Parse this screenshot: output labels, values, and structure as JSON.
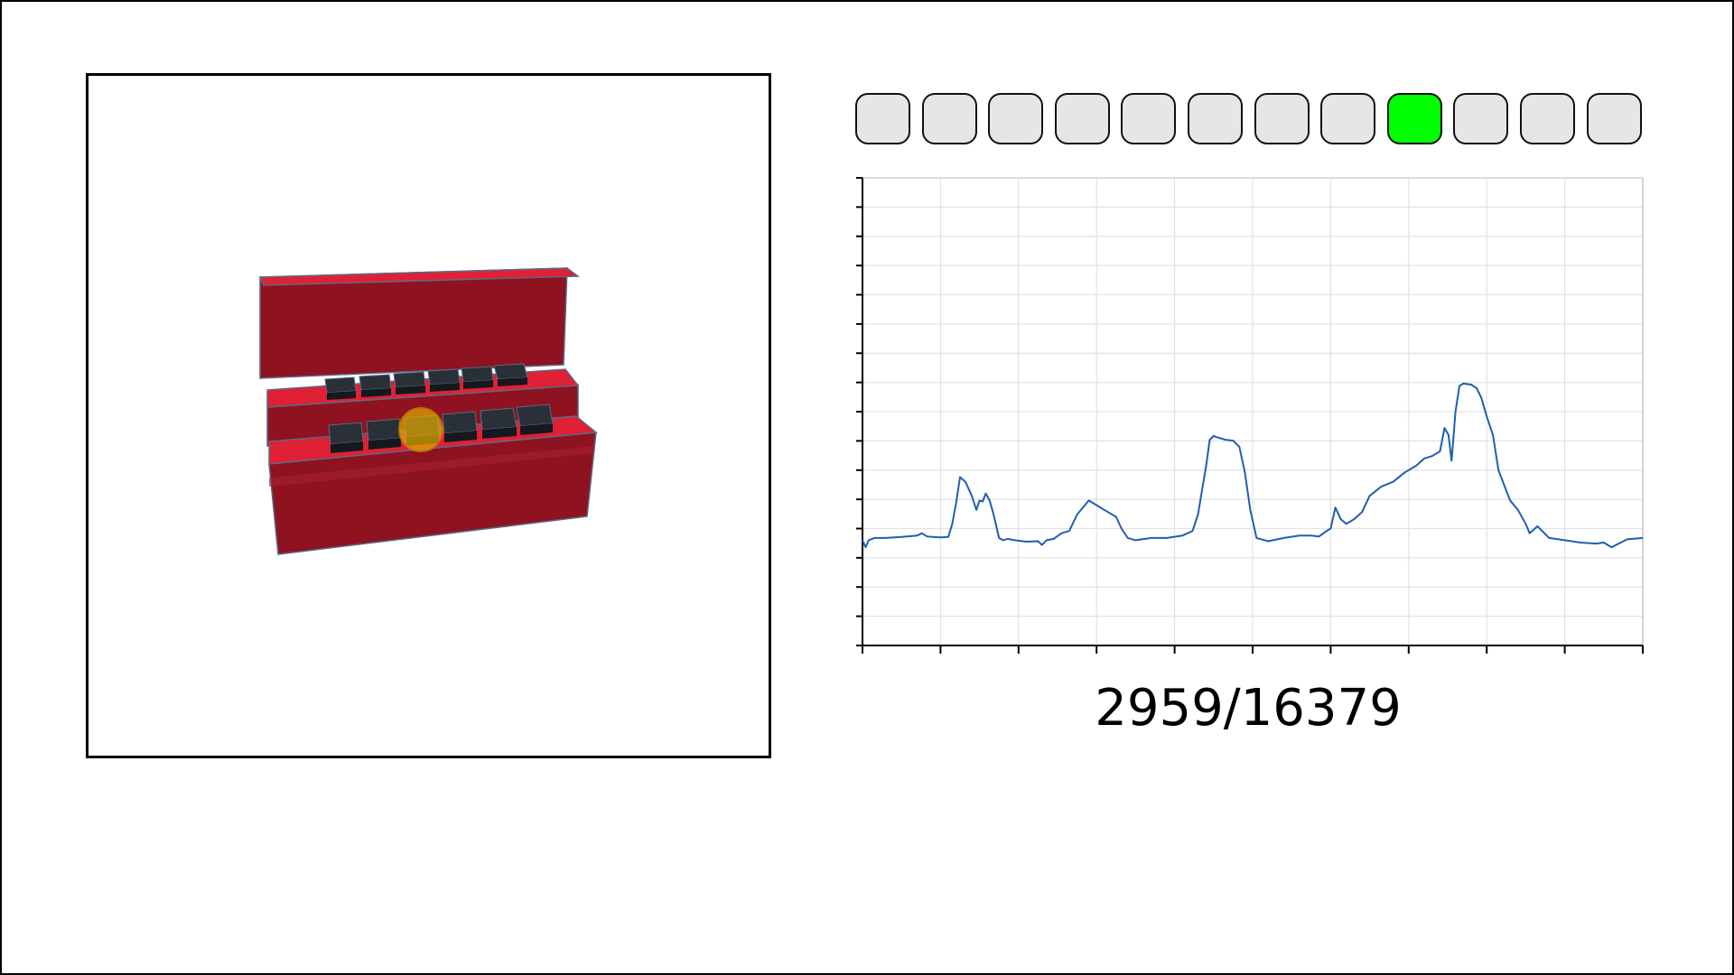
{
  "viewer": {
    "body_color": "#8e121f",
    "top_color": "#e02035",
    "key_color": "#1e2329",
    "cursor_color": "#e0a800",
    "cursor_icon": "cursor-dot-icon"
  },
  "indicators": {
    "count": 12,
    "active_index": 8,
    "active_color": "#00ff00",
    "inactive_color": "#e6e6e6"
  },
  "counter": {
    "text": "2959/16379",
    "current": 2959,
    "total": 16379
  },
  "chart_data": {
    "type": "line",
    "title": "",
    "xlabel": "",
    "ylabel": "",
    "grid": true,
    "xlim": [
      0,
      100
    ],
    "ylim": [
      0,
      100
    ],
    "x_tick_count": 11,
    "y_tick_count": 17,
    "series": [
      {
        "color": "#1f5fb0",
        "x": [
          0,
          0.4,
          0.8,
          1.5,
          3,
          5,
          7,
          7.6,
          8.3,
          9,
          10,
          11,
          11.5,
          12,
          12.5,
          13.2,
          14,
          14.6,
          15,
          15.4,
          15.8,
          16.3,
          16.8,
          17.5,
          18,
          18.6,
          19.5,
          21,
          22.5,
          23,
          23.6,
          24.5,
          25.5,
          26.5,
          27.5,
          29,
          30,
          31,
          32.5,
          33.2,
          34,
          35,
          37,
          39,
          41,
          42.3,
          43,
          43.5,
          44,
          44.5,
          45,
          45.5,
          46.5,
          47.5,
          48.3,
          49,
          49.7,
          50.5,
          52,
          54,
          56,
          57.5,
          58.5,
          59.5,
          60,
          60.6,
          61.3,
          62,
          63,
          64,
          65,
          66.5,
          68,
          69.5,
          71,
          72,
          73,
          74,
          74.6,
          75.1,
          75.5,
          76,
          76.5,
          77,
          78,
          78.7,
          79.3,
          80,
          80.8,
          81.5,
          82.3,
          83,
          84,
          85,
          85.5,
          86.5,
          88,
          90,
          92,
          94,
          95,
          95.5,
          96,
          98,
          100
        ],
        "y": [
          22.5,
          21,
          22.5,
          23,
          23,
          23.2,
          23.5,
          24,
          23.3,
          23.2,
          23.1,
          23.2,
          26,
          30.5,
          36,
          35,
          32,
          29,
          31,
          30.8,
          32.5,
          31,
          28,
          23,
          22.5,
          22.8,
          22.5,
          22.2,
          22.3,
          21.5,
          22.5,
          22.8,
          24,
          24.5,
          28,
          31,
          30,
          29,
          27.5,
          25,
          23,
          22.5,
          23,
          23,
          23.5,
          24.5,
          28,
          33,
          38,
          44,
          44.8,
          44.5,
          44,
          43.8,
          42.5,
          37,
          29,
          23,
          22.3,
          23,
          23.5,
          23.5,
          23.3,
          24.5,
          25,
          29.5,
          27,
          26,
          27,
          28.5,
          32,
          34,
          35,
          37,
          38.5,
          40,
          40.5,
          41.5,
          46.5,
          45,
          39.5,
          50,
          55.5,
          56,
          55.8,
          55,
          53,
          49,
          45,
          37.5,
          34,
          31,
          29,
          26,
          24,
          25.5,
          23,
          22.5,
          22,
          21.8,
          22,
          21.5,
          21,
          22.7,
          23
        ]
      }
    ]
  }
}
